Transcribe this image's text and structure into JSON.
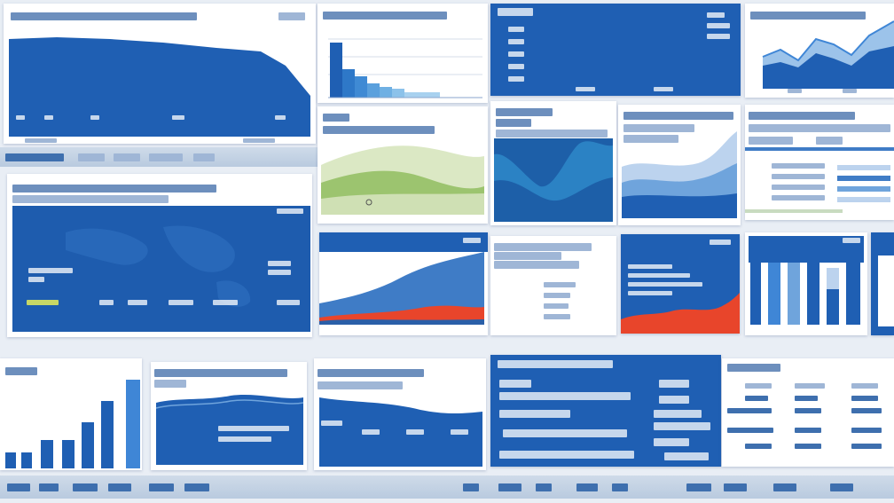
{
  "palette": {
    "blue": "#1f5fb3",
    "dark_blue": "#184f9c",
    "light_blue": "#6fa4dc",
    "pale_blue": "#bcd3ee",
    "green": "#9cc46f",
    "red": "#e8452b",
    "background": "#e9eef5"
  },
  "panels": [
    {
      "id": "area-chart-top-left"
    },
    {
      "id": "bar-chart-top"
    },
    {
      "id": "blue-info-card-top"
    },
    {
      "id": "line-area-top-right"
    },
    {
      "id": "green-area-panel"
    },
    {
      "id": "teal-area-panel"
    },
    {
      "id": "layered-area-panel"
    },
    {
      "id": "table-panel-right"
    },
    {
      "id": "world-map-panel"
    },
    {
      "id": "red-blue-area-panel"
    },
    {
      "id": "text-list-panel"
    },
    {
      "id": "red-wave-panel"
    },
    {
      "id": "column-chart-right"
    },
    {
      "id": "column-chart-bottom-left"
    },
    {
      "id": "area-panel-bottom"
    },
    {
      "id": "area-panel-bottom-2"
    },
    {
      "id": "blue-text-panel"
    },
    {
      "id": "icon-list-panel"
    }
  ]
}
